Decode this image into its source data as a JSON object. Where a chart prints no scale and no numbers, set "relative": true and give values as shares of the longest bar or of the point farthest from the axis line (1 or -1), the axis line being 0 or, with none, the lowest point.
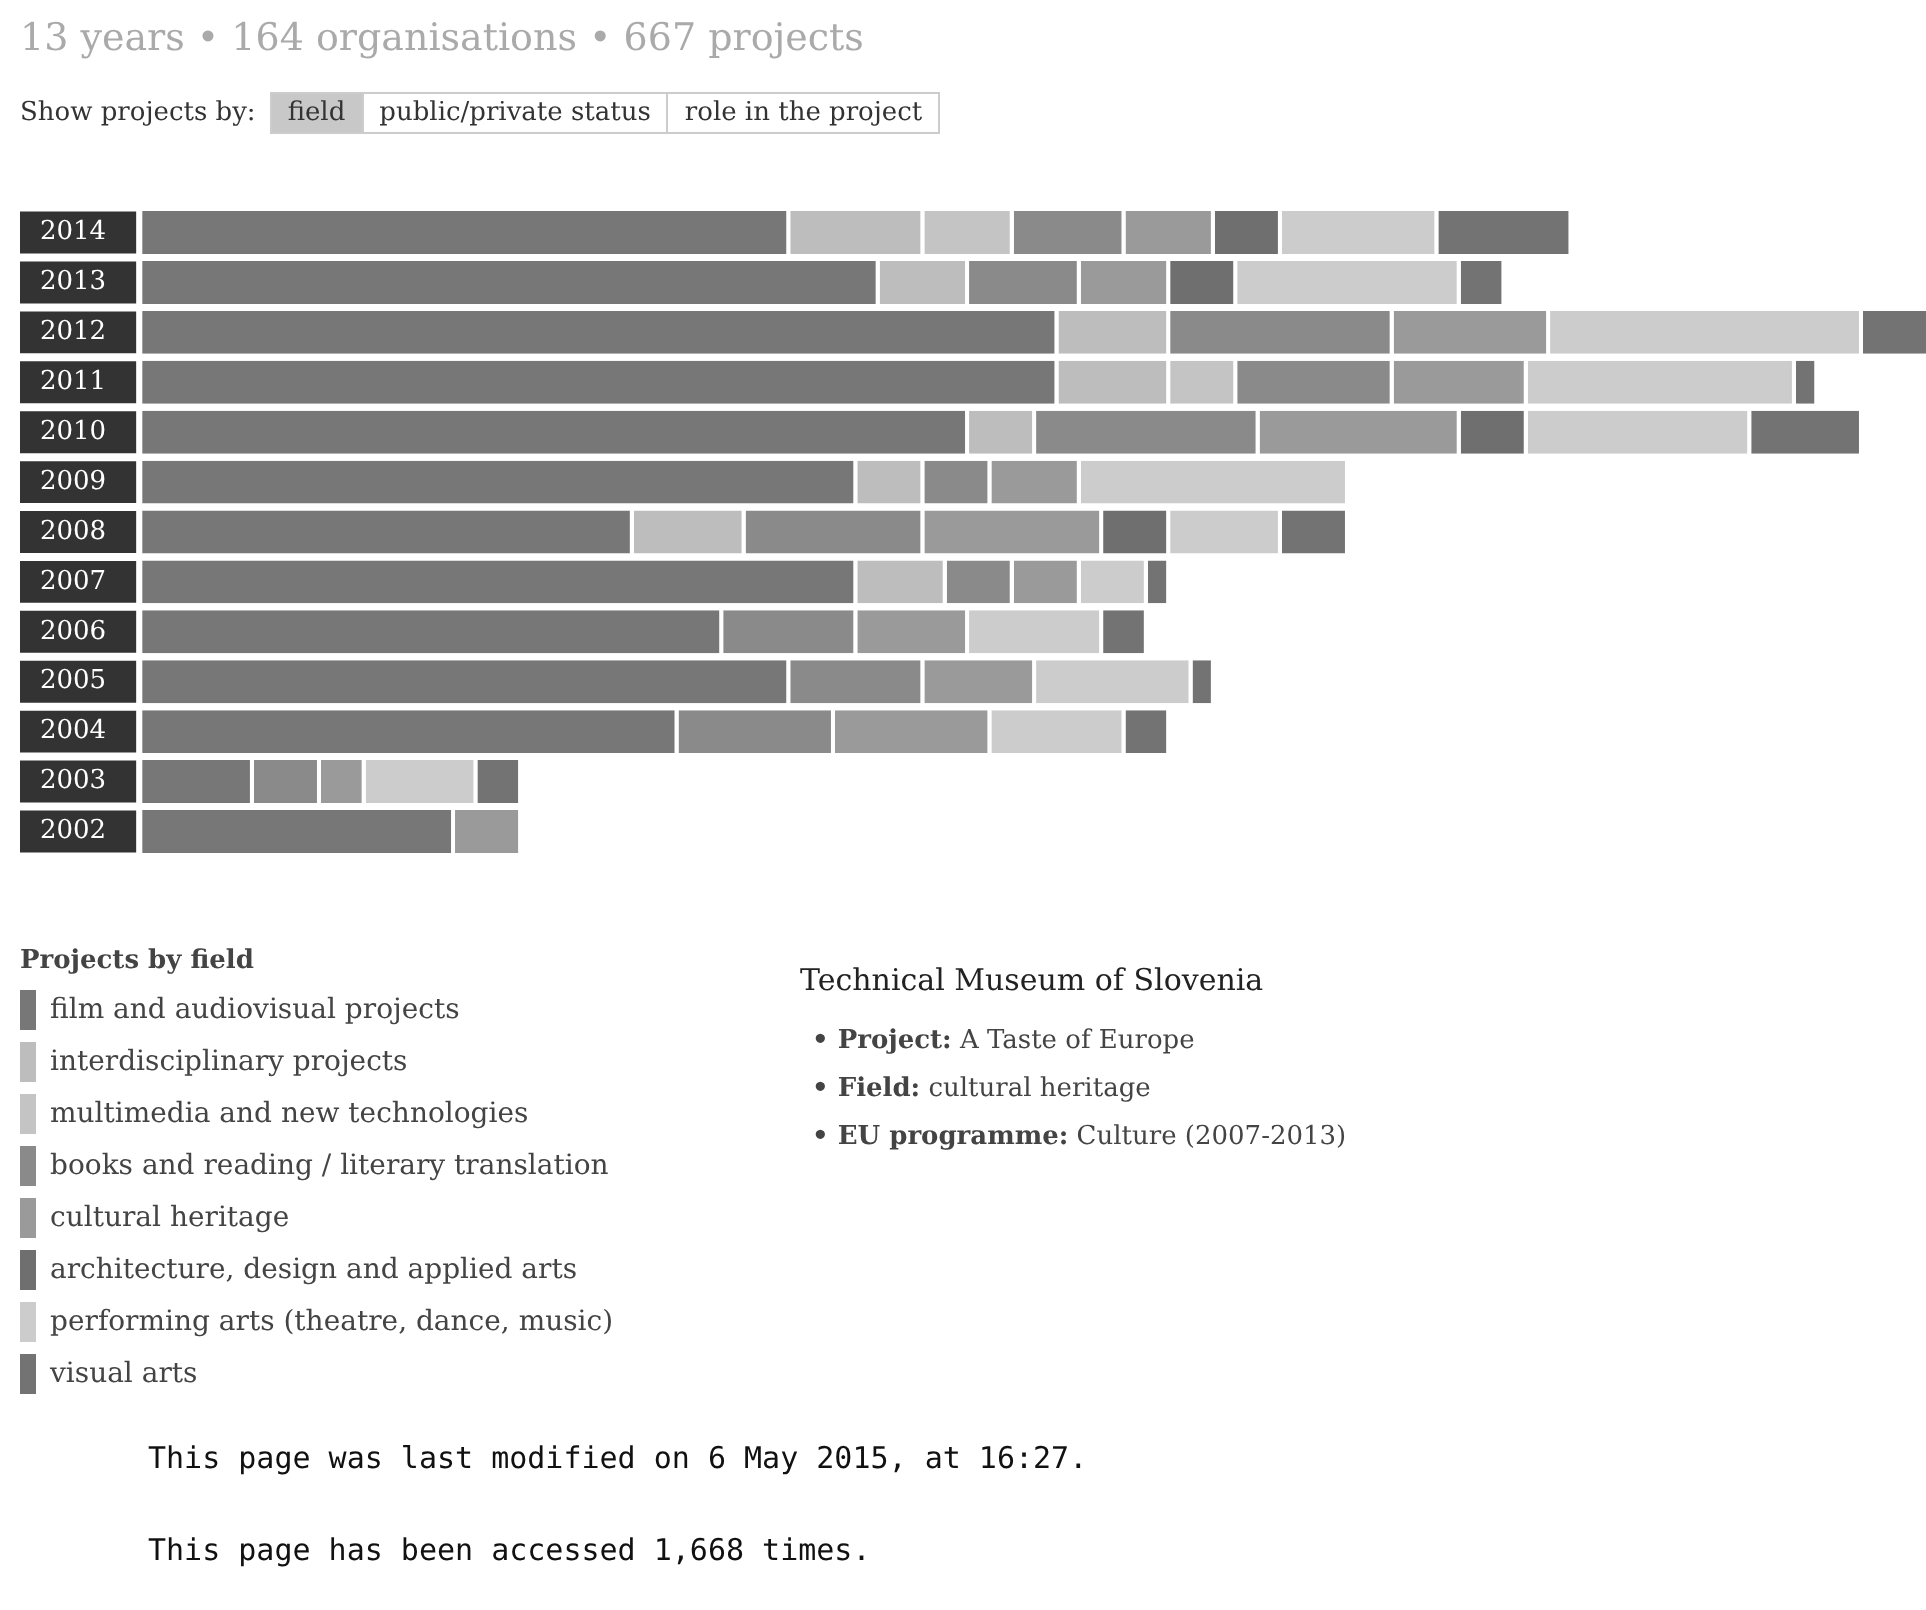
{
  "chart_data": {
    "type": "bar",
    "orientation": "horizontal",
    "stacked": true,
    "relative": true,
    "title": "13 years • 164 organisations • 667 projects",
    "legend_title": "Projects by field",
    "legend": "bottom left",
    "categories": [
      "2014",
      "2013",
      "2012",
      "2011",
      "2010",
      "2009",
      "2008",
      "2007",
      "2006",
      "2005",
      "2004",
      "2003",
      "2002"
    ],
    "series": [
      {
        "name": "film and audiovisual projects",
        "color": "#777777",
        "values": [
          0.3625,
          0.4125,
          0.5125,
          0.5125,
          0.4625,
          0.4,
          0.275,
          0.4,
          0.325,
          0.3625,
          0.3,
          0.0625,
          0.175
        ]
      },
      {
        "name": "interdisciplinary projects",
        "color": "#bdbdbd",
        "values": [
          0.075,
          0.05,
          0.0625,
          0.0625,
          0.0375,
          0.0375,
          0.0625,
          0.05,
          0,
          0,
          0,
          0,
          0
        ]
      },
      {
        "name": "multimedia and new technologies",
        "color": "#c4c4c4",
        "values": [
          0.05,
          0,
          0,
          0.0375,
          0,
          0,
          0,
          0,
          0,
          0,
          0,
          0,
          0
        ]
      },
      {
        "name": "books and reading / literary translation",
        "color": "#8a8a8a",
        "values": [
          0.0625,
          0.0625,
          0.125,
          0.0875,
          0.125,
          0.0375,
          0.1,
          0.0375,
          0.075,
          0.075,
          0.0875,
          0.0375,
          0
        ]
      },
      {
        "name": "cultural heritage",
        "color": "#9a9a9a",
        "values": [
          0.05,
          0.05,
          0.0875,
          0.075,
          0.1125,
          0.05,
          0.1,
          0.0375,
          0.0625,
          0.0625,
          0.0875,
          0.025,
          0.0375
        ]
      },
      {
        "name": "architecture, design and applied arts",
        "color": "#6f6f6f",
        "values": [
          0.0375,
          0.0375,
          0,
          0,
          0.0375,
          0,
          0.0375,
          0,
          0,
          0,
          0,
          0,
          0
        ]
      },
      {
        "name": "performing arts (theatre, dance, music)",
        "color": "#cccccc",
        "values": [
          0.0875,
          0.125,
          0.175,
          0.15,
          0.125,
          0.15,
          0.0625,
          0.0375,
          0.075,
          0.0875,
          0.075,
          0.0625,
          0
        ]
      },
      {
        "name": "visual arts",
        "color": "#737373",
        "values": [
          0.075,
          0.025,
          0.0375,
          0.0125,
          0.0625,
          0,
          0.0375,
          0.0125,
          0.025,
          0.0125,
          0.025,
          0.025,
          0
        ]
      }
    ],
    "annotations": [
      "Show projects by:",
      "field",
      "public/private status",
      "role in the project",
      "Technical Museum of Slovenia",
      "• Project: A Taste of Europe",
      "• Field: cultural heritage",
      "• EU programme: Culture (2007-2013)",
      "This page was last modified on 6 May 2015, at 16:27.",
      "This page has been accessed 1,668 times."
    ]
  }
}
